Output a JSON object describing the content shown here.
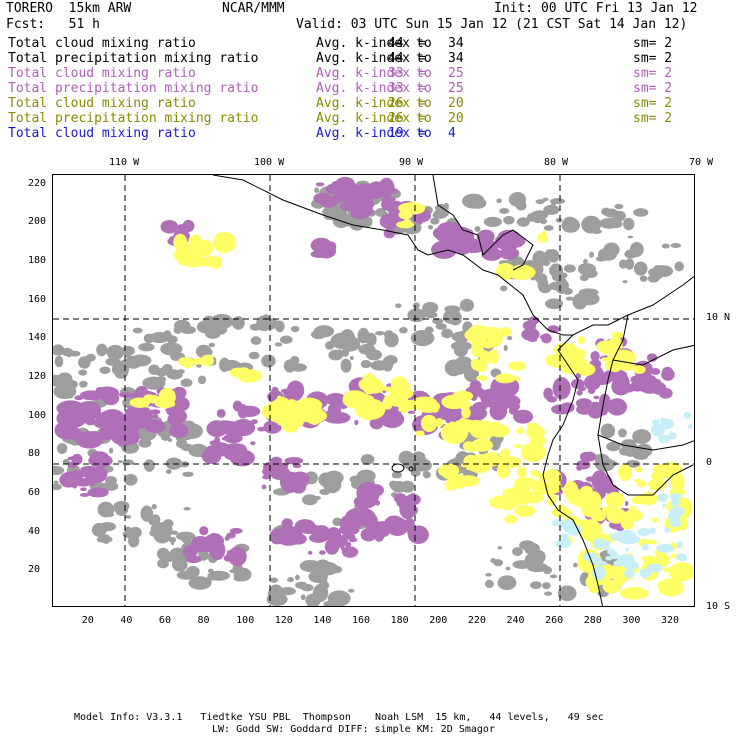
{
  "header": {
    "model": "TORERO  15km ARW",
    "center": "NCAR/MMM",
    "init": "Init: 00 UTC Fri 13 Jan 12",
    "fcst": "Fcst:   51 h",
    "valid": "Valid: 03 UTC Sun 15 Jan 12 (21 CST Sat 14 Jan 12)"
  },
  "legend": [
    {
      "field": "Total cloud mixing ratio",
      "avg": "Avg. k-index =",
      "from": "44",
      "to_word": "to",
      "to": "34",
      "sm": "sm= 2",
      "color": "#000000"
    },
    {
      "field": "Total precipitation mixing ratio",
      "avg": "Avg. k-index =",
      "from": "44",
      "to_word": "to",
      "to": "34",
      "sm": "sm= 2",
      "color": "#000000"
    },
    {
      "field": "Total cloud mixing ratio",
      "avg": "Avg. k-index =",
      "from": "33",
      "to_word": "to",
      "to": "25",
      "sm": "sm= 2",
      "color": "#b060b8"
    },
    {
      "field": "Total precipitation mixing ratio",
      "avg": "Avg. k-index =",
      "from": "33",
      "to_word": "to",
      "to": "25",
      "sm": "sm= 2",
      "color": "#b060b8"
    },
    {
      "field": "Total cloud mixing ratio",
      "avg": "Avg. k-index =",
      "from": "26",
      "to_word": "to",
      "to": "20",
      "sm": "sm= 2",
      "color": "#8a8a00"
    },
    {
      "field": "Total precipitation mixing ratio",
      "avg": "Avg. k-index =",
      "from": "26",
      "to_word": "to",
      "to": "20",
      "sm": "sm= 2",
      "color": "#8a8a00"
    },
    {
      "field": "Total cloud mixing ratio",
      "avg": "Avg. k-index =",
      "from": "19",
      "to_word": "to",
      "to": "4",
      "sm": "",
      "color": "#1a1acc"
    }
  ],
  "map": {
    "lon_labels": [
      "110 W",
      "100 W",
      "90 W",
      "80 W",
      "70 W"
    ],
    "lat_labels": [
      "10 N",
      "0",
      "10 S"
    ],
    "x_ticks": [
      "20",
      "40",
      "60",
      "80",
      "100",
      "120",
      "140",
      "160",
      "180",
      "200",
      "220",
      "240",
      "260",
      "280",
      "300",
      "320"
    ],
    "y_ticks": [
      "220",
      "200",
      "180",
      "160",
      "140",
      "120",
      "100",
      "80",
      "60",
      "40",
      "20"
    ],
    "x_range": [
      1,
      334
    ],
    "y_range": [
      1,
      225
    ],
    "colors": {
      "gray": "#9e9e9e",
      "purple": "#b070b8",
      "yellow": "#ffff66",
      "lightblue": "#c8eef8",
      "coast": "#000000"
    }
  },
  "footer": {
    "line1": "Model Info: V3.3.1   Tiedtke YSU PBL  Thompson    Noah LSM  15 km,   44 levels,   49 sec",
    "line2": "LW: Godd SW: Goddard DIFF: simple KM: 2D Smagor"
  }
}
